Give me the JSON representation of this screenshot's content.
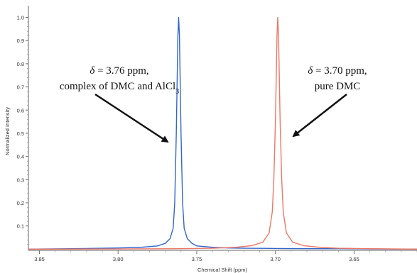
{
  "chart_data": {
    "type": "line",
    "xlabel": "Chemical Shift (ppm)",
    "ylabel": "Normalized Intensity",
    "xlim": [
      3.857,
      3.61
    ],
    "ylim": [
      -0.005,
      1.02
    ],
    "x_reversed": true,
    "x_ticks": [
      3.85,
      3.8,
      3.75,
      3.7,
      3.65
    ],
    "x_tick_labels": [
      "3.85",
      "3.80",
      "3.75",
      "3.70",
      "3.65"
    ],
    "y_ticks": [
      0.1,
      0.2,
      0.3,
      0.4,
      0.5,
      0.6,
      0.7,
      0.8,
      0.9,
      1.0
    ],
    "y_tick_labels": [
      "0.1",
      "0.2",
      "0.3",
      "0.4",
      "0.5",
      "0.6",
      "0.7",
      "0.8",
      "0.9",
      "1.0"
    ],
    "series": [
      {
        "color": "#3366cc",
        "peak_center": 3.7615,
        "peak_height": 1.0,
        "x": [
          3.857,
          3.82,
          3.8,
          3.785,
          3.775,
          3.77,
          3.767,
          3.765,
          3.764,
          3.763,
          3.762,
          3.7615,
          3.761,
          3.76,
          3.759,
          3.758,
          3.756,
          3.753,
          3.75,
          3.74,
          3.73,
          3.72,
          3.7,
          3.68,
          3.66,
          3.64,
          3.61
        ],
        "y": [
          0.0,
          0.003,
          0.005,
          0.008,
          0.014,
          0.025,
          0.045,
          0.09,
          0.2,
          0.5,
          0.92,
          1.0,
          0.92,
          0.5,
          0.2,
          0.09,
          0.045,
          0.025,
          0.014,
          0.008,
          0.005,
          0.004,
          0.003,
          0.002,
          0.002,
          0.001,
          0.0
        ]
      },
      {
        "color": "#ee7766",
        "peak_center": 3.6985,
        "peak_height": 1.0,
        "x": [
          3.857,
          3.8,
          3.76,
          3.74,
          3.725,
          3.715,
          3.708,
          3.704,
          3.702,
          3.701,
          3.7,
          3.699,
          3.6985,
          3.698,
          3.697,
          3.696,
          3.695,
          3.693,
          3.689,
          3.682,
          3.672,
          3.66,
          3.64,
          3.61
        ],
        "y": [
          0.0,
          0.001,
          0.002,
          0.004,
          0.008,
          0.015,
          0.03,
          0.07,
          0.16,
          0.3,
          0.55,
          0.92,
          1.0,
          0.92,
          0.55,
          0.3,
          0.16,
          0.07,
          0.03,
          0.015,
          0.008,
          0.004,
          0.002,
          0.0
        ]
      }
    ],
    "annotations": [
      {
        "lines": [
          "δ = 3.76 ppm,",
          "complex of DMC and AlCl3"
        ]
      },
      {
        "lines": [
          "δ = 3.70 ppm,",
          "pure DMC"
        ]
      }
    ]
  }
}
